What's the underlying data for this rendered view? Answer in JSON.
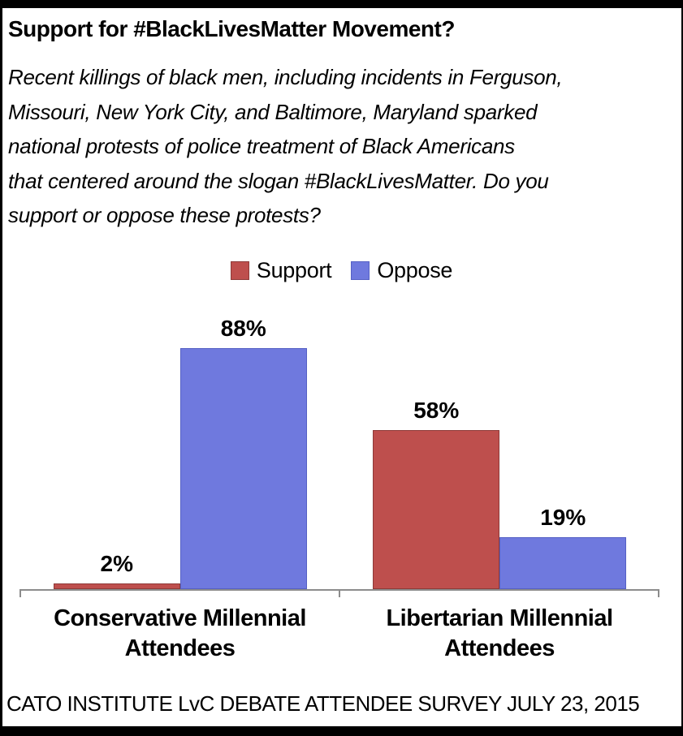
{
  "page": {
    "title": "Support for #BlackLivesMatter Movement?",
    "subtitle": "Recent killings of black men, including incidents in Ferguson,\nMissouri, New York City, and Baltimore, Maryland sparked\nnational protests of police treatment of Black Americans\nthat centered around the slogan #BlackLivesMatter. Do you\nsupport or oppose these protests?",
    "footer": "CATO INSTITUTE LvC DEBATE ATTENDEE SURVEY JULY 23, 2015"
  },
  "colors": {
    "support_fill": "#BE4F4D",
    "support_border": "#8E3A38",
    "oppose_fill": "#6F79DE",
    "oppose_border": "#5560C4",
    "axis": "#8C8C8C",
    "text": "#000000",
    "frame": "#000000",
    "background": "#FFFFFF"
  },
  "chart_data": {
    "type": "bar",
    "title": "Support for #BlackLivesMatter Movement?",
    "categories": [
      "Conservative Millennial Attendees",
      "Libertarian Millennial Attendees"
    ],
    "series": [
      {
        "name": "Support",
        "values": [
          2,
          58
        ],
        "color": "#BE4F4D",
        "border_color": "#8E3A38"
      },
      {
        "name": "Oppose",
        "values": [
          88,
          19
        ],
        "color": "#6F79DE",
        "border_color": "#5560C4"
      }
    ],
    "value_labels": [
      "2%",
      "88%",
      "58%",
      "19%"
    ],
    "ylim": [
      0,
      100
    ],
    "grid": false,
    "y_axis_visible": false,
    "legend_position": "top-center",
    "source_note": "CATO INSTITUTE LvC DEBATE ATTENDEE SURVEY JULY 23, 2015"
  }
}
